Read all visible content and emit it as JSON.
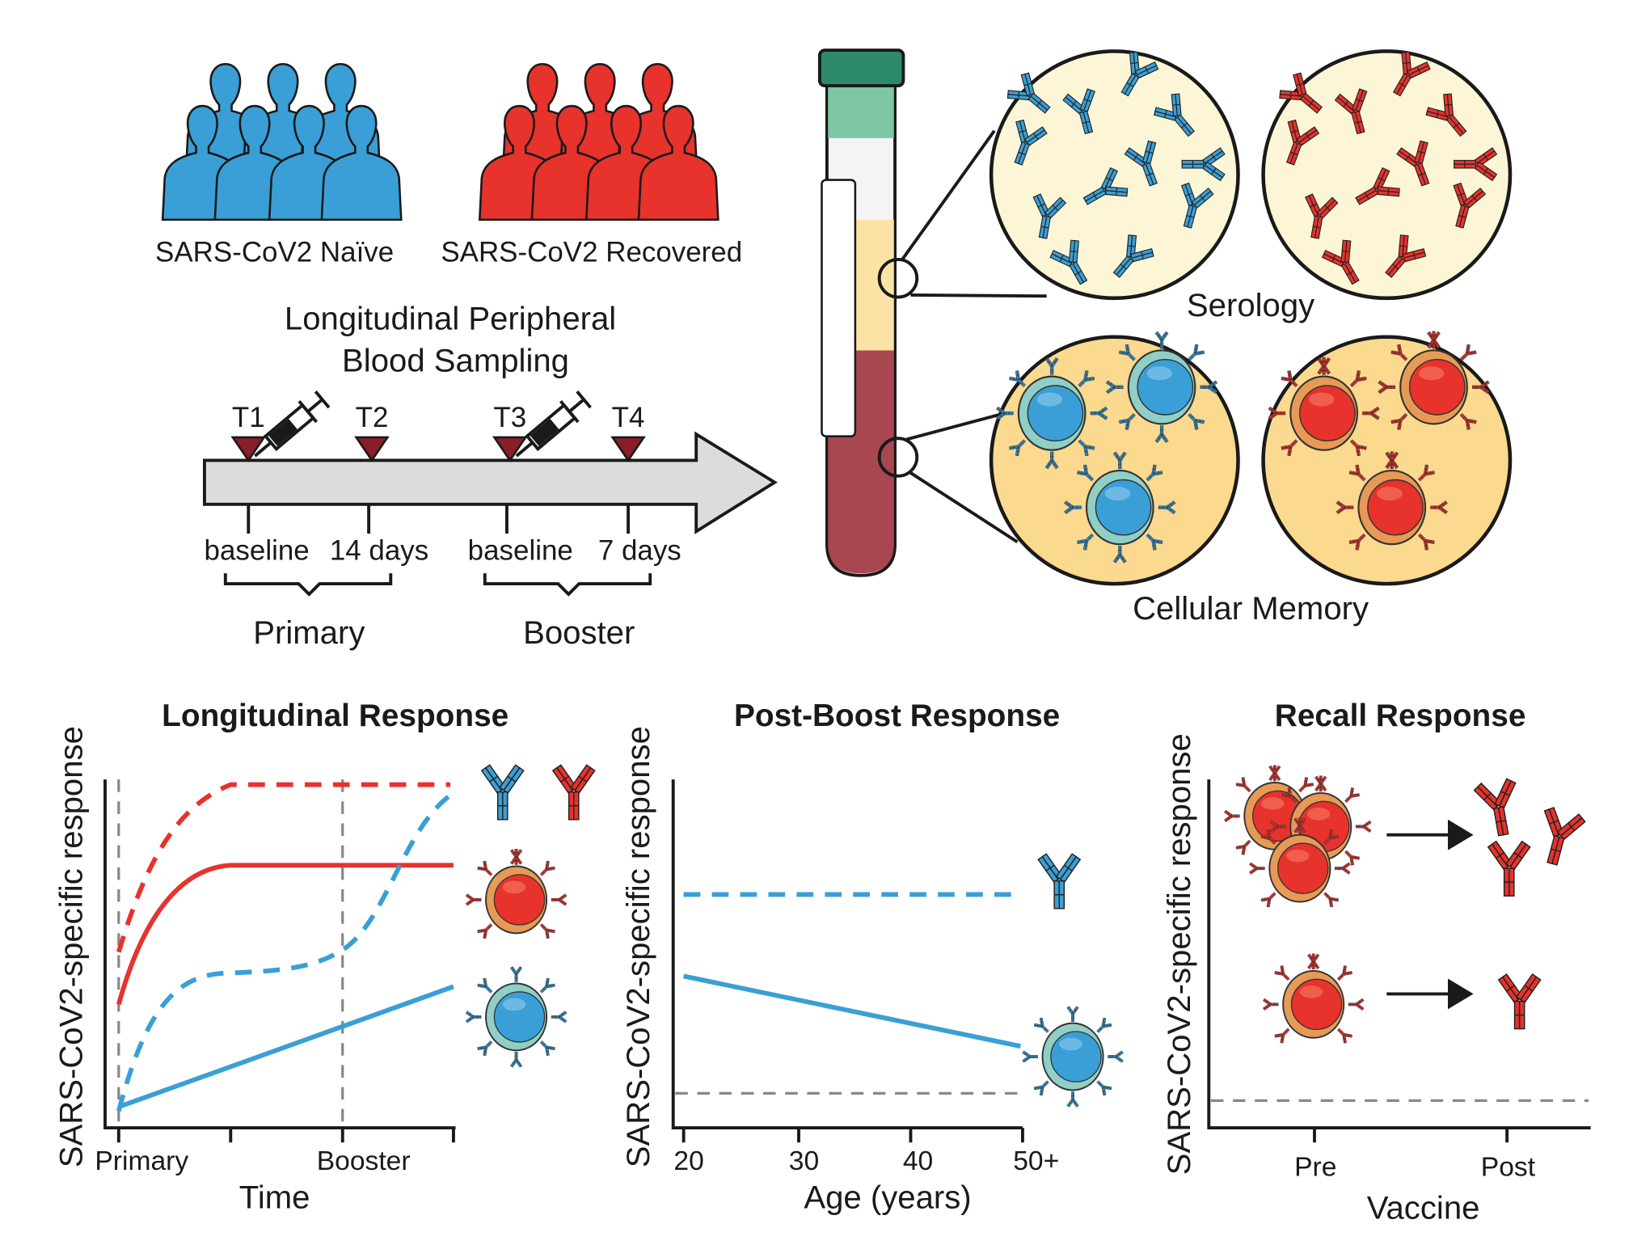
{
  "colors": {
    "blue": "#3a9fd6",
    "red": "#e8322c",
    "tube_red": "#a8474f",
    "plasma": "#fbe3a6",
    "circle_fill": "#fdf6d6",
    "cell_circle_fill": "#fbd98e",
    "cap_green": "#2c8a6a"
  },
  "cohorts": [
    {
      "label": "SARS-CoV2 Naïve",
      "icon": "crowd-icon-blue"
    },
    {
      "label": "SARS-CoV2 Recovered",
      "icon": "crowd-icon-red"
    }
  ],
  "sampling": {
    "title_line1": "Longitudinal Peripheral",
    "title_line2": "Blood Sampling",
    "timepoints": [
      "T1",
      "T2",
      "T3",
      "T4"
    ],
    "tick_labels": [
      "baseline",
      "14 days",
      "baseline",
      "7 days"
    ],
    "groups": [
      "Primary",
      "Booster"
    ]
  },
  "assays": {
    "serology": "Serology",
    "cellular": "Cellular Memory"
  },
  "panels": {
    "longitudinal": {
      "title": "Longitudinal Response",
      "ylabel": "SARS-CoV2-specific response",
      "xlabel": "Time",
      "ticks": [
        "Primary",
        "Booster"
      ]
    },
    "postboost": {
      "title": "Post-Boost Response",
      "ylabel": "SARS-CoV2-specific response",
      "xlabel": "Age (years)",
      "ticks": [
        "20",
        "30",
        "40",
        "50+"
      ]
    },
    "recall": {
      "title": "Recall Response",
      "ylabel": "SARS-CoV2-specific response",
      "xlabel": "Vaccine",
      "ticks": [
        "Pre",
        "Post"
      ]
    }
  }
}
